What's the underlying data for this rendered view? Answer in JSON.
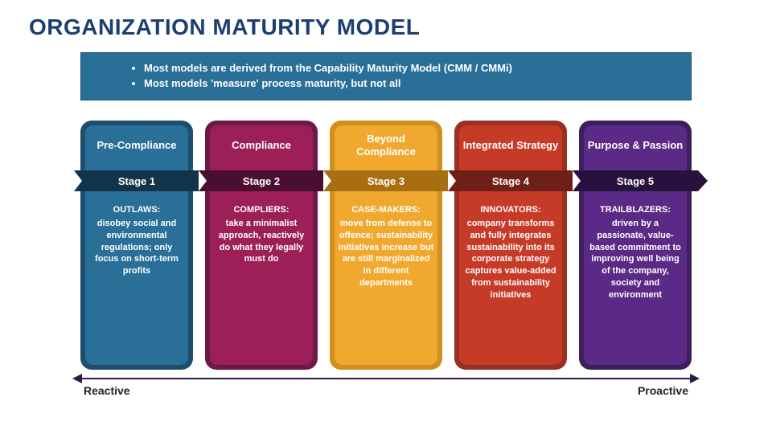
{
  "title": "ORGANIZATION MATURITY MODEL",
  "title_color": "#1d3f70",
  "header": {
    "bullets": [
      "Most models are derived from the Capability Maturity Model (CMM / CMMi)",
      "Most models 'measure' process maturity, but not all"
    ],
    "bg": "#2a6f97"
  },
  "cards": [
    {
      "title": "Pre-Compliance",
      "stage": "Stage 1",
      "role": "OUTLAWS:",
      "desc": "disobey social and environmental regulations; only focus on short-term profits",
      "outer": "#1d4e6d",
      "inner": "#2a6f97",
      "band": "#123448"
    },
    {
      "title": "Compliance",
      "stage": "Stage 2",
      "role": "COMPLIERS:",
      "desc": "take a minimalist approach, reactively do what they legally must do",
      "outer": "#6d1847",
      "inner": "#9c1f58",
      "band": "#4a0f30"
    },
    {
      "title": "Beyond Compliance",
      "stage": "Stage 3",
      "role": "CASE-MAKERS:",
      "desc": "move from defense to offence; sustainability initiatives increase but are still marginalized in different departments",
      "outer": "#d08f1f",
      "inner": "#f0a92e",
      "band": "#a86f12"
    },
    {
      "title": "Integrated Strategy",
      "stage": "Stage 4",
      "role": "INNOVATORS:",
      "desc": "company transforms and fully integrates sustainability into its corporate strategy captures value-added from sustainability initiatives",
      "outer": "#9a2f23",
      "inner": "#c63a28",
      "band": "#6e1f17"
    },
    {
      "title": "Purpose & Passion",
      "stage": "Stage 5",
      "role": "TRAILBLAZERS:",
      "desc": "driven by a passionate, value-based commitment to improving well being of the company, society and environment",
      "outer": "#3d1f5c",
      "inner": "#5b2a86",
      "band": "#27123d"
    }
  ],
  "spectrum": {
    "left": "Reactive",
    "right": "Proactive",
    "color": "#2c1a47"
  }
}
